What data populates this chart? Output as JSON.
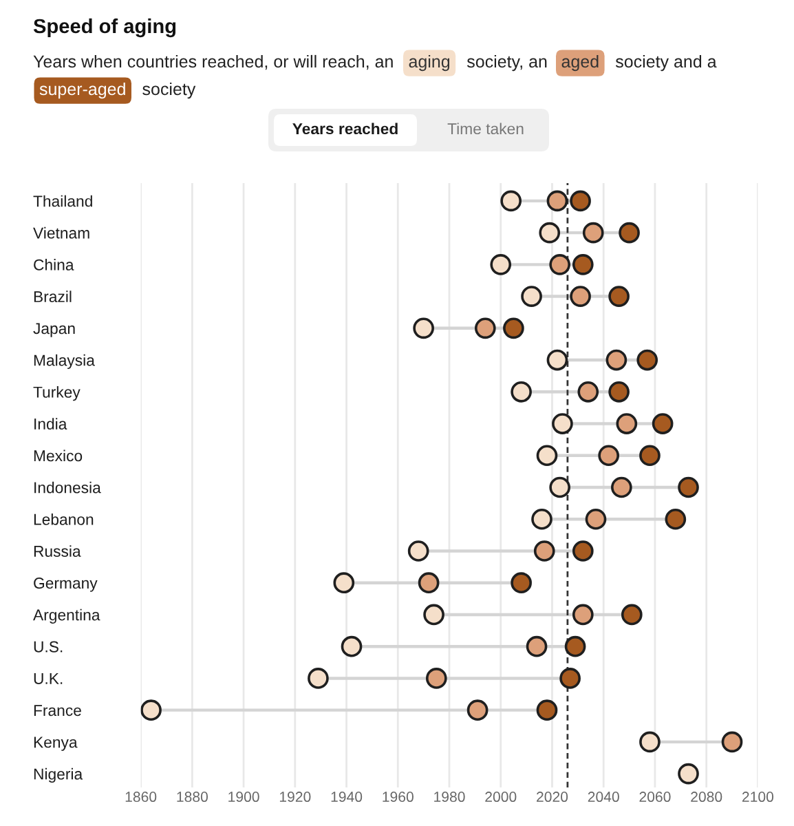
{
  "chart_data": {
    "type": "scatter",
    "title": "Speed of aging",
    "subtitle": "Years when countries reached, or will reach, an",
    "orientation": "horizontal",
    "categories": [
      "Thailand",
      "Vietnam",
      "China",
      "Brazil",
      "Japan",
      "Malaysia",
      "Turkey",
      "India",
      "Mexico",
      "Indonesia",
      "Lebanon",
      "Russia",
      "Germany",
      "Argentina",
      "U.S.",
      "U.K.",
      "France",
      "Kenya",
      "Nigeria"
    ],
    "series": [
      {
        "name": "aging",
        "color": "#f5dfca",
        "values": [
          2004,
          2019,
          2000,
          2012,
          1970,
          2022,
          2008,
          2024,
          2018,
          2023,
          2016,
          1968,
          1939,
          1974,
          1942,
          1929,
          1864,
          2058,
          2073
        ]
      },
      {
        "name": "aged",
        "color": "#dda07a",
        "values": [
          2022,
          2036,
          2023,
          2031,
          1994,
          2045,
          2034,
          2049,
          2042,
          2047,
          2037,
          2017,
          1972,
          2032,
          2014,
          1975,
          1991,
          2090,
          null
        ]
      },
      {
        "name": "super-aged",
        "color": "#a65a20",
        "values": [
          2031,
          2050,
          2032,
          2046,
          2005,
          2057,
          2046,
          2063,
          2058,
          2073,
          2068,
          2032,
          2008,
          2051,
          2029,
          2027,
          2018,
          null,
          null
        ]
      }
    ],
    "xlim": [
      1860,
      2100
    ],
    "xticks": [
      1860,
      1880,
      1900,
      1920,
      1940,
      1960,
      1980,
      2000,
      2020,
      2040,
      2060,
      2080,
      2100
    ],
    "grid": "x",
    "legend": "top",
    "marker": "circle",
    "ref_lines": [
      {
        "axis": "x",
        "value": 2026,
        "color": "#333333",
        "line_style": "dashed"
      }
    ],
    "annotations": [
      "society, an",
      "society and a",
      "society",
      "Years reached",
      "Time taken"
    ]
  }
}
